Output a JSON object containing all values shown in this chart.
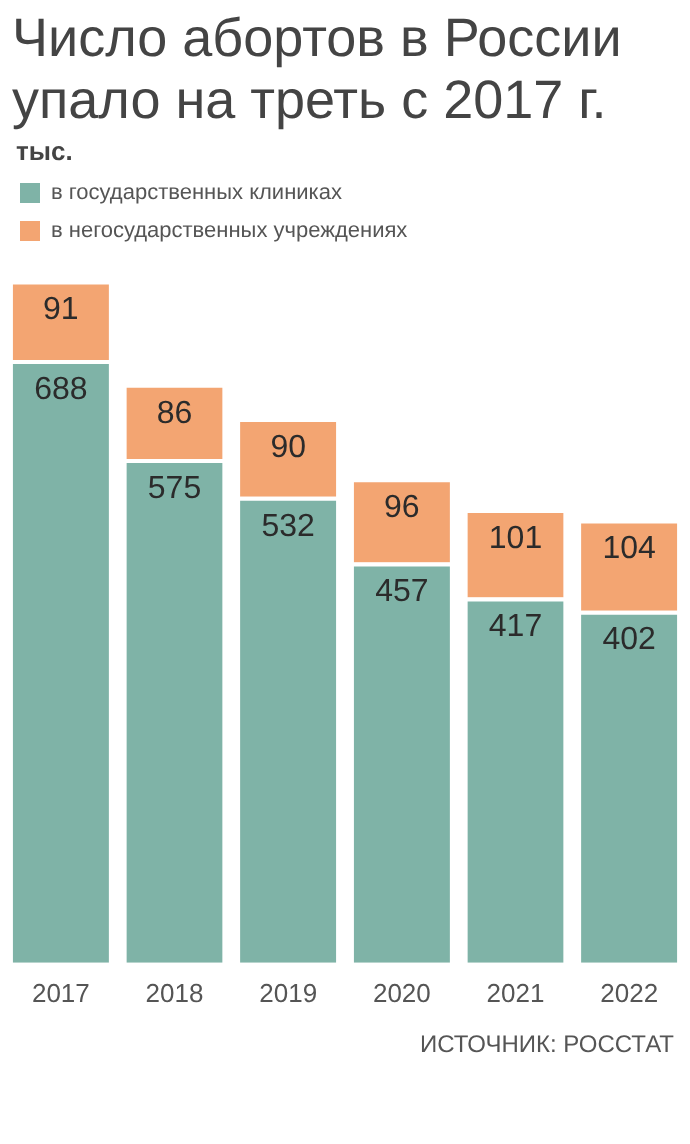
{
  "chart_data": {
    "type": "bar",
    "title": "Число абортов в России упало на треть с 2017 г.",
    "ylabel": "тыс.",
    "categories": [
      "2017",
      "2018",
      "2019",
      "2020",
      "2021",
      "2022"
    ],
    "series": [
      {
        "name": "в государственных клиниках",
        "color": "#7fb3a7",
        "values": [
          688,
          575,
          532,
          457,
          417,
          402
        ]
      },
      {
        "name": "в негосударственных учреждениях",
        "color": "#f3a572",
        "values": [
          91,
          86,
          90,
          96,
          101,
          104
        ]
      }
    ],
    "stacked": true,
    "data_labels": true,
    "legend": "top left",
    "grid": false,
    "annotations": [
      "ИСТОЧНИК: РОССТАТ"
    ]
  }
}
